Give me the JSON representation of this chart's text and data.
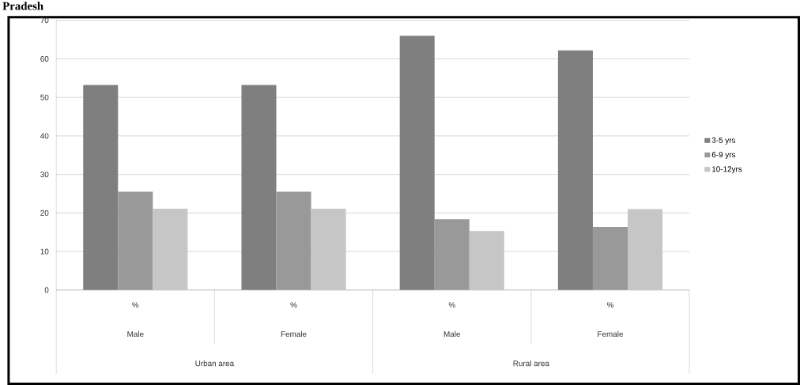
{
  "chart_data": {
    "type": "bar",
    "title": "Pradesh",
    "categories": [
      "%",
      "%",
      "%",
      "%"
    ],
    "series": [
      {
        "name": "3-5 yrs",
        "color": "#7f7f7f",
        "values": [
          53.2,
          53.2,
          66.0,
          62.2
        ]
      },
      {
        "name": "6-9 yrs",
        "color": "#999999",
        "values": [
          25.5,
          25.5,
          18.4,
          16.4
        ]
      },
      {
        "name": "10-12yrs",
        "color": "#c6c6c6",
        "values": [
          21.1,
          21.1,
          15.3,
          21.0
        ]
      }
    ],
    "annotations": [
      "Male",
      "Female",
      "Male",
      "Female",
      "Urban area",
      "Rural area"
    ],
    "ylim": [
      0,
      70
    ],
    "yticks": [
      0,
      10,
      20,
      30,
      40,
      50,
      60,
      70
    ],
    "grid": "y",
    "legend": "right"
  }
}
